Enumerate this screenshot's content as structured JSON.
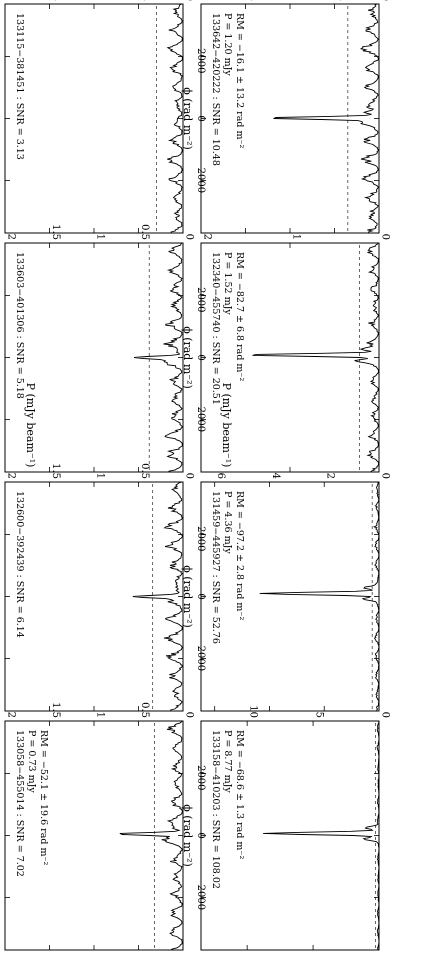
{
  "figure": {
    "y_axis_label": "P (mJy beam⁻¹)",
    "x_axis_label": "ϕ (rad m⁻²)"
  },
  "chart_data": [
    {
      "type": "line",
      "row": 1,
      "col": 1,
      "annotation_lines": [
        "133115−381451 : SNR = 3.13"
      ],
      "ylim": [
        0,
        2.0
      ],
      "xlim": [
        -3700,
        3700
      ],
      "y_ticks": [
        0,
        0.5,
        1,
        1.5,
        2
      ],
      "y_tick_labels": [
        "0",
        "0.5",
        "1",
        "1.5",
        "2"
      ],
      "x_ticks": [
        -2000,
        0,
        2000
      ],
      "x_tick_labels": [],
      "noise_level": 0.1,
      "peaks": [],
      "threshold": 0.3
    },
    {
      "type": "line",
      "row": 1,
      "col": 2,
      "annotation_lines": [
        "133603−401306 : SNR = 5.18"
      ],
      "ylim": [
        0,
        2.0
      ],
      "xlim": [
        -3700,
        3700
      ],
      "y_ticks": [
        0,
        0.5,
        1,
        1.5,
        2
      ],
      "y_tick_labels": [
        "0",
        "0.5",
        "1",
        "1.5",
        "2"
      ],
      "x_ticks": [
        -2000,
        0,
        2000
      ],
      "x_tick_labels": [],
      "noise_level": 0.13,
      "peaks": [
        {
          "phi": 0,
          "p": 0.5
        }
      ],
      "threshold": 0.38
    },
    {
      "type": "line",
      "row": 1,
      "col": 3,
      "annotation_lines": [
        "132600−392439 : SNR = 6.14"
      ],
      "ylim": [
        0,
        2.0
      ],
      "xlim": [
        -3700,
        3700
      ],
      "y_ticks": [
        0,
        0.5,
        1,
        1.5,
        2
      ],
      "y_tick_labels": [
        "0",
        "0.5",
        "1",
        "1.5",
        "2"
      ],
      "x_ticks": [
        -2000,
        0,
        2000
      ],
      "x_tick_labels": [],
      "noise_level": 0.12,
      "peaks": [
        {
          "phi": 0,
          "p": 0.45
        }
      ],
      "threshold": 0.34
    },
    {
      "type": "line",
      "row": 1,
      "col": 4,
      "annotation_lines": [
        "133058−455014 : SNR = 7.02",
        "P = 0.73 mJy",
        "RM = −52.1 ± 19.6 rad m⁻²"
      ],
      "ylim": [
        0,
        2.0
      ],
      "xlim": [
        -3700,
        3700
      ],
      "y_ticks": [
        0,
        0.5,
        1,
        1.5,
        2
      ],
      "y_tick_labels": [
        "0",
        "0.5",
        "1",
        "1.5",
        "2"
      ],
      "x_ticks": [
        -2000,
        0,
        2000
      ],
      "x_tick_labels": [],
      "noise_level": 0.11,
      "peaks": [
        {
          "phi": -52.1,
          "p": 0.73
        }
      ],
      "threshold": 0.32
    },
    {
      "type": "line",
      "row": 2,
      "col": 1,
      "annotation_lines": [
        "133642−420222 : SNR = 10.48",
        "P = 1.20 mJy",
        "RM = −16.1 ± 13.2 rad m⁻²"
      ],
      "ylim": [
        0,
        2.0
      ],
      "xlim": [
        -3700,
        3700
      ],
      "y_ticks": [
        0,
        0.5,
        1,
        1.5,
        2
      ],
      "y_tick_labels": [
        "0",
        "0.5",
        "1",
        "1.5",
        "2"
      ],
      "x_ticks": [
        -2000,
        0,
        2000
      ],
      "x_tick_labels": [
        "−2000",
        "0",
        "2000"
      ],
      "noise_level": 0.12,
      "peaks": [
        {
          "phi": -16.1,
          "p": 1.2
        }
      ],
      "threshold": 0.35
    },
    {
      "type": "line",
      "row": 2,
      "col": 2,
      "annotation_lines": [
        "132340−455740 : SNR = 20.51",
        "P = 1.52 mJy",
        "RM = −82.7 ± 6.8 rad m⁻²"
      ],
      "ylim": [
        0,
        2.0
      ],
      "xlim": [
        -3700,
        3700
      ],
      "y_ticks": [
        0,
        1,
        2
      ],
      "y_tick_labels": [
        "0",
        "1",
        "2"
      ],
      "x_ticks": [
        -2000,
        0,
        2000
      ],
      "x_tick_labels": [
        "−2000",
        "0",
        "2000"
      ],
      "noise_level": 0.08,
      "peaks": [
        {
          "phi": -82.7,
          "p": 1.52
        }
      ],
      "threshold": 0.22
    },
    {
      "type": "line",
      "row": 2,
      "col": 3,
      "annotation_lines": [
        "131459−445927 : SNR = 52.76",
        "P = 4.36 mJy",
        "RM = −97.2 ± 2.8 rad m⁻²"
      ],
      "ylim": [
        0,
        6.5
      ],
      "xlim": [
        -3700,
        3700
      ],
      "y_ticks": [
        0,
        2,
        4,
        6
      ],
      "y_tick_labels": [
        "0",
        "2",
        "4",
        "6"
      ],
      "x_ticks": [
        -2000,
        0,
        2000
      ],
      "x_tick_labels": [
        "−2000",
        "0",
        "2000"
      ],
      "noise_level": 0.1,
      "peaks": [
        {
          "phi": -97.2,
          "p": 4.36
        }
      ],
      "threshold": 0.25
    },
    {
      "type": "line",
      "row": 2,
      "col": 4,
      "annotation_lines": [
        "133158−410203 : SNR = 108.02",
        "P = 8.77 mJy",
        "RM = −68.6 ± 1.3 rad m⁻²"
      ],
      "ylim": [
        0,
        13.5
      ],
      "xlim": [
        -3700,
        3700
      ],
      "y_ticks": [
        0,
        5,
        10
      ],
      "y_tick_labels": [
        "0",
        "5",
        "10"
      ],
      "x_ticks": [
        -2000,
        0,
        2000
      ],
      "x_tick_labels": [
        "−2000",
        "0",
        "2000"
      ],
      "noise_level": 0.09,
      "peaks": [
        {
          "phi": -68.6,
          "p": 8.77
        }
      ],
      "threshold": 0.25
    }
  ]
}
